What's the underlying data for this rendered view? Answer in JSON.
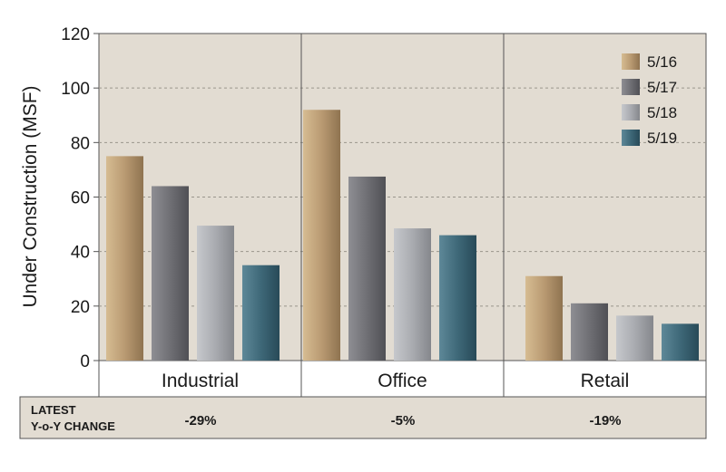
{
  "chart_data": {
    "type": "bar",
    "ylabel": "Under Construction (MSF)",
    "ylim": [
      0,
      120
    ],
    "yticks": [
      0,
      20,
      40,
      60,
      80,
      100,
      120
    ],
    "categories": [
      "Industrial",
      "Office",
      "Retail"
    ],
    "series": [
      {
        "name": "5/16",
        "values": [
          75,
          92,
          31
        ]
      },
      {
        "name": "5/17",
        "values": [
          64,
          67.5,
          21
        ]
      },
      {
        "name": "5/18",
        "values": [
          49.5,
          48.5,
          16.5
        ]
      },
      {
        "name": "5/19",
        "values": [
          35,
          46,
          13.5
        ]
      }
    ],
    "legend_position": "top-right",
    "grid": "horizontal-dashed"
  },
  "colors": {
    "plot_bg": "#e2dcd2",
    "series": [
      "#b99a72",
      "#6f6f74",
      "#a9abb0",
      "#3e6878"
    ]
  },
  "yoy": {
    "label_line1": "LATEST",
    "label_line2": "Y-o-Y CHANGE",
    "values": [
      "-29%",
      "-5%",
      "-19%"
    ]
  }
}
